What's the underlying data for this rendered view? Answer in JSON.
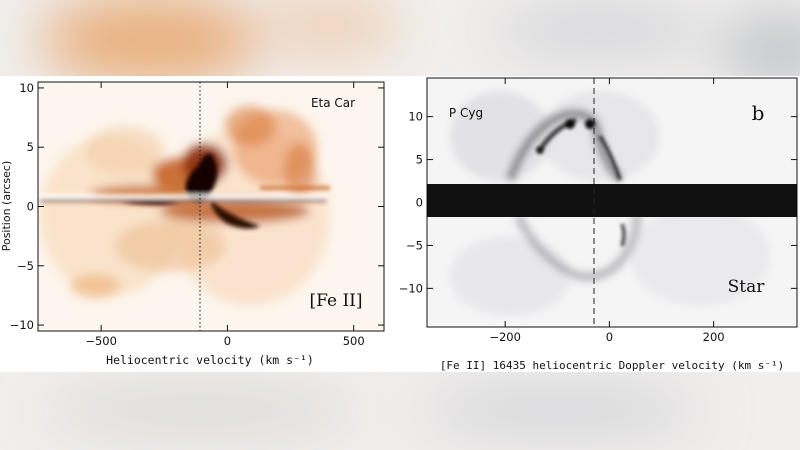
{
  "chart_data": [
    {
      "type": "heatmap",
      "title": "",
      "object_label": "Eta Car",
      "line_label": "[Fe II]",
      "xlabel": "Heliocentric velocity (km s⁻¹)",
      "ylabel": "Position (arcsec)",
      "xlim": [
        -750,
        620
      ],
      "ylim": [
        -10.5,
        10.5
      ],
      "x_ticks": [
        -500,
        0,
        500
      ],
      "y_ticks": [
        -10,
        -5,
        0,
        5,
        10
      ],
      "x_tick_labels": [
        "−500",
        "0",
        "500"
      ],
      "y_tick_labels": [
        "−10",
        "−5",
        "0",
        "5",
        "10"
      ],
      "reference_line_x": 0,
      "colormap": [
        "#ffffff",
        "#f6c48e",
        "#d9731f",
        "#8a2a08",
        "#140404"
      ],
      "grid": false
    },
    {
      "type": "heatmap",
      "title": "",
      "panel_label": "b",
      "object_label": "P Cyg",
      "star_label": "Star",
      "xlabel": "[Fe II] 16435 heliocentric Doppler velocity (km s⁻¹)",
      "ylabel": "",
      "xlim": [
        -350,
        360
      ],
      "ylim": [
        -14.5,
        14.5
      ],
      "x_ticks": [
        -200,
        0,
        200
      ],
      "y_ticks": [
        -10,
        -5,
        0,
        5,
        10
      ],
      "x_tick_labels": [
        "−200",
        "0",
        "200"
      ],
      "y_tick_labels": [
        "−10",
        "−5",
        "0",
        "5",
        "10"
      ],
      "reference_line_x": -30,
      "colormap": [
        "#ffffff",
        "#b8b8c0",
        "#1a1a1a"
      ],
      "grid": false
    }
  ]
}
